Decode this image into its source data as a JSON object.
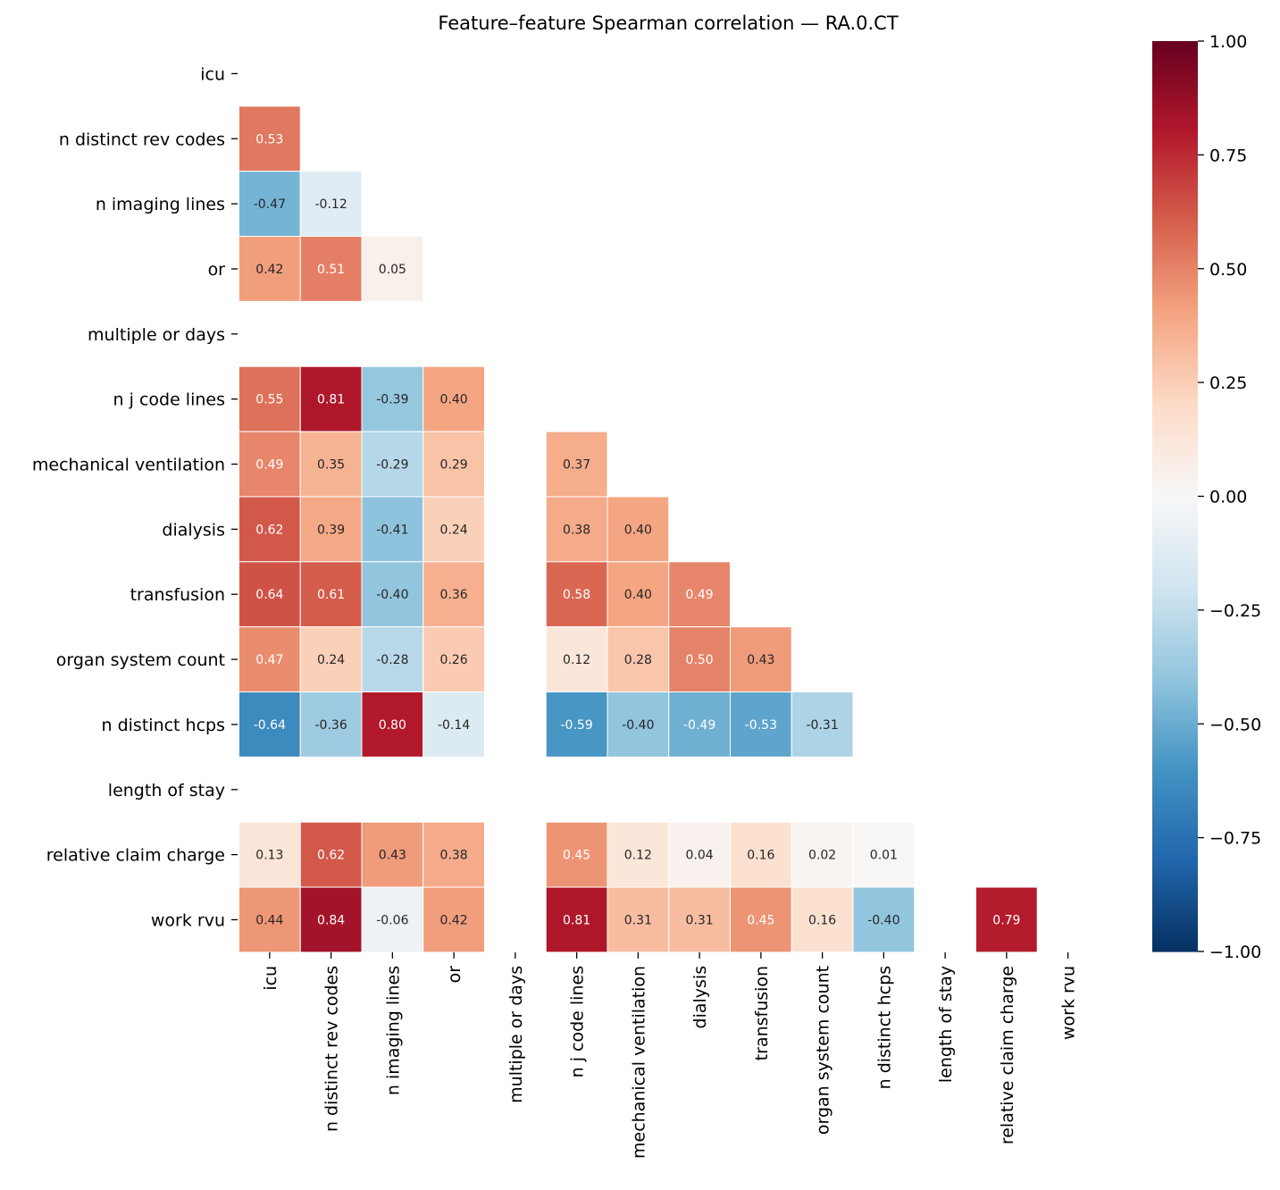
{
  "chart_data": {
    "type": "heatmap",
    "title": "Feature–feature Spearman correlation — RA.0.CT",
    "labels": [
      "icu",
      "n distinct rev codes",
      "n imaging lines",
      "or",
      "multiple or days",
      "n j code lines",
      "mechanical ventilation",
      "dialysis",
      "transfusion",
      "organ system count",
      "n distinct hcps",
      "length of stay",
      "relative claim charge",
      "work rvu"
    ],
    "rows": [
      [],
      [
        0.53
      ],
      [
        -0.47,
        -0.12
      ],
      [
        0.42,
        0.51,
        0.05
      ],
      [
        null,
        null,
        null,
        null
      ],
      [
        0.55,
        0.81,
        -0.39,
        0.4,
        null
      ],
      [
        0.49,
        0.35,
        -0.29,
        0.29,
        null,
        0.37
      ],
      [
        0.62,
        0.39,
        -0.41,
        0.24,
        null,
        0.38,
        0.4
      ],
      [
        0.64,
        0.61,
        -0.4,
        0.36,
        null,
        0.58,
        0.4,
        0.49
      ],
      [
        0.47,
        0.24,
        -0.28,
        0.26,
        null,
        0.12,
        0.28,
        0.5,
        0.43
      ],
      [
        -0.64,
        -0.36,
        0.8,
        -0.14,
        null,
        -0.59,
        -0.4,
        -0.49,
        -0.53,
        -0.31
      ],
      [
        null,
        null,
        null,
        null,
        null,
        null,
        null,
        null,
        null,
        null,
        null
      ],
      [
        0.13,
        0.62,
        0.43,
        0.38,
        null,
        0.45,
        0.12,
        0.04,
        0.16,
        0.02,
        0.01,
        null
      ],
      [
        0.44,
        0.84,
        -0.06,
        0.42,
        null,
        0.81,
        0.31,
        0.31,
        0.45,
        0.16,
        -0.4,
        null,
        0.79
      ]
    ],
    "mask": "upper triangle incl. diagonal; blank cells are missing",
    "value_format": "2 decimals",
    "colormap": "RdBu_r",
    "colormap_stops": [
      "#053061",
      "#2166ac",
      "#4393c3",
      "#92c5de",
      "#d1e5f0",
      "#f7f7f7",
      "#fddbc7",
      "#f4a582",
      "#d6604d",
      "#b2182b",
      "#67001f"
    ],
    "vmin": -1.0,
    "vmax": 1.0,
    "colorbar_ticks": [
      "1.00",
      "0.75",
      "0.50",
      "0.25",
      "0.00",
      "−0.25",
      "−0.50",
      "−0.75",
      "−1.00"
    ]
  }
}
